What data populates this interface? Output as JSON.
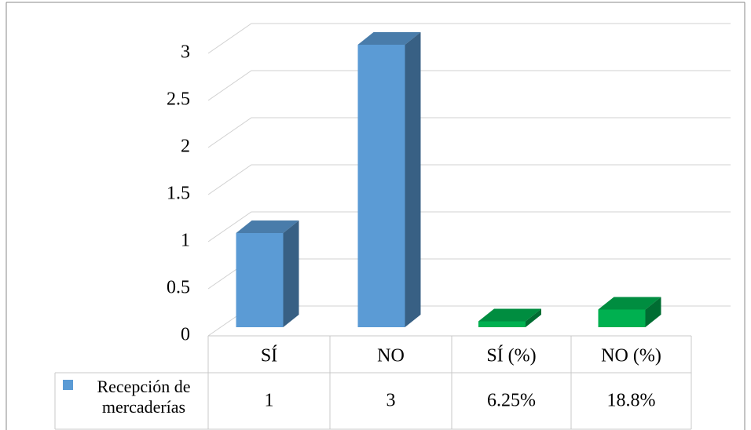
{
  "chart_data": {
    "type": "bar3d",
    "categories": [
      "SÍ",
      "NO",
      "SÍ (%)",
      "NO (%)"
    ],
    "series": [
      {
        "name": "Recepción de mercaderías",
        "color": "#5b9bd5",
        "values": [
          1,
          3,
          0.0625,
          0.188
        ],
        "value_labels": [
          "1",
          "3",
          "6.25%",
          "18.8%"
        ],
        "colors": [
          "#5b9bd5",
          "#5b9bd5",
          "#00b050",
          "#00b050"
        ]
      }
    ],
    "ylim": [
      0,
      3
    ],
    "yticks": [
      0,
      0.5,
      1,
      1.5,
      2,
      2.5,
      3
    ],
    "grid": true,
    "data_table": true
  }
}
